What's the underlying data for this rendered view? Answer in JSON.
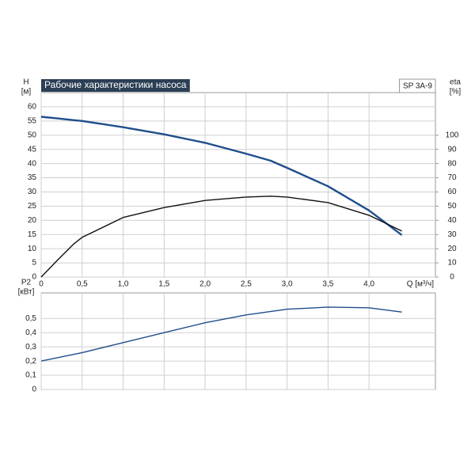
{
  "chart_data": [
    {
      "type": "line",
      "title": "Рабочие характеристики насоса",
      "model": "SP 3A-9",
      "x_label": "Q [м³/ч]",
      "y_label": "H",
      "y_unit": "[м]",
      "y2_label": "eta",
      "y2_unit": "[%]",
      "x": [
        0,
        0.2,
        0.4,
        0.5,
        1.0,
        1.5,
        2.0,
        2.5,
        2.8,
        3.0,
        3.5,
        4.0,
        4.4
      ],
      "series": [
        {
          "color": "#1f4e8c",
          "values": [
            56.5,
            55.9,
            55.3,
            55,
            52.8,
            50.3,
            47.3,
            43.5,
            41,
            38.5,
            32,
            23.5,
            14.8
          ]
        },
        {
          "color": "#111111",
          "axis": "y2",
          "values": [
            0,
            12,
            23.5,
            28,
            42,
            49,
            54,
            56.4,
            57,
            56.4,
            52.5,
            43.6,
            32.4
          ]
        }
      ],
      "xlim": [
        0,
        4.81
      ],
      "ylim": [
        0,
        65
      ],
      "y2lim": [
        0,
        130
      ],
      "xticks": [
        0,
        {
          "value": 0.5,
          "label": "0,5"
        },
        {
          "value": 1,
          "label": "1,0"
        },
        {
          "value": 1.5,
          "label": "1,5"
        },
        {
          "value": 2,
          "label": "2,0"
        },
        {
          "value": 2.5,
          "label": "2,5"
        },
        {
          "value": 3,
          "label": "3,0"
        },
        {
          "value": 3.5,
          "label": "3,5"
        },
        {
          "value": 4,
          "label": "4,0"
        }
      ],
      "yticks": [
        0,
        5,
        10,
        15,
        20,
        25,
        30,
        35,
        40,
        45,
        50,
        55,
        60
      ],
      "y2ticks": [
        0,
        10,
        20,
        30,
        40,
        50,
        60,
        70,
        80,
        90,
        100
      ],
      "grid": true
    },
    {
      "type": "line",
      "y_label": "P2",
      "y_unit": "[кВт]",
      "x": [
        0,
        0.5,
        1.0,
        1.5,
        2.0,
        2.5,
        3.0,
        3.5,
        4.0,
        4.4
      ],
      "series": [
        {
          "color": "#1f4e8c",
          "values": [
            0.2,
            0.26,
            0.33,
            0.4,
            0.47,
            0.525,
            0.565,
            0.58,
            0.575,
            0.545
          ]
        }
      ],
      "xlim": [
        0,
        4.81
      ],
      "ylim": [
        0,
        0.68
      ],
      "xticks": [
        0,
        0.5,
        1,
        1.5,
        2,
        2.5,
        3,
        3.5,
        4
      ],
      "xtick_labels": false,
      "yticks": [
        0,
        {
          "value": 0.1,
          "label": "0,1"
        },
        {
          "value": 0.2,
          "label": "0,2"
        },
        {
          "value": 0.3,
          "label": "0,3"
        },
        {
          "value": 0.4,
          "label": "0,4"
        },
        {
          "value": 0.5,
          "label": "0,5"
        }
      ],
      "grid": true
    }
  ]
}
